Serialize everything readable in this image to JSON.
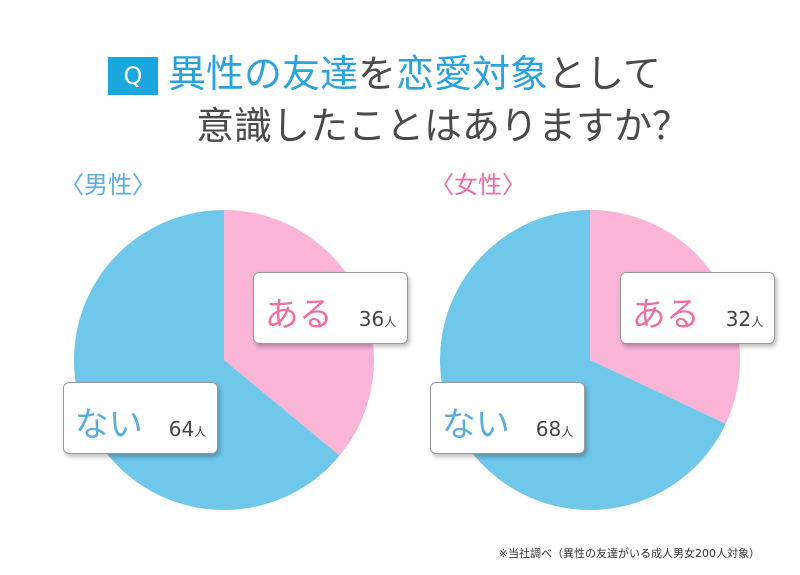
{
  "question": {
    "badge": "Q",
    "line1_a": "異性の友達",
    "line1_b": "を",
    "line1_c": "恋愛対象",
    "line1_d": "として",
    "line2": "意識したことはありますか？"
  },
  "chart_data": [
    {
      "type": "pie",
      "title": "〈男性〉",
      "unit": "人",
      "slices": [
        {
          "label": "ある",
          "value": 36,
          "color": "#f9b4d6"
        },
        {
          "label": "ない",
          "value": 64,
          "color": "#6fc7ea"
        }
      ]
    },
    {
      "type": "pie",
      "title": "〈女性〉",
      "unit": "人",
      "slices": [
        {
          "label": "ある",
          "value": 32,
          "color": "#f9b4d6"
        },
        {
          "label": "ない",
          "value": 68,
          "color": "#6fc7ea"
        }
      ]
    }
  ],
  "footnote": "※当社調べ（異性の友達がいる成人男女200人対象）"
}
